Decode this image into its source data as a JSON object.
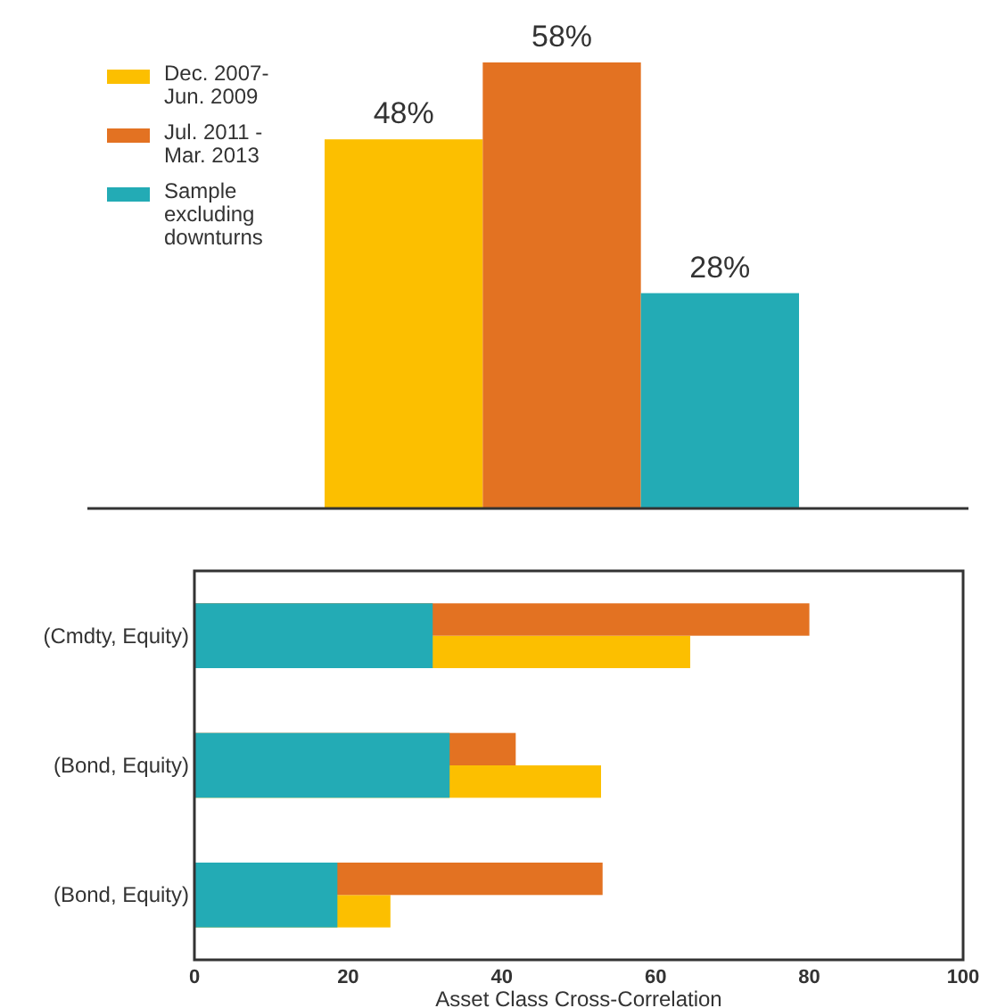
{
  "chart_data": [
    {
      "type": "bar",
      "categories": [
        null
      ],
      "series": [
        {
          "name": "Dec. 2007-\nJun. 2009",
          "color": "#fcbf00",
          "values": [
            48
          ],
          "value_labels": [
            "48%"
          ]
        },
        {
          "name": "Jul. 2011 -\nMar. 2013",
          "color": "#e37222",
          "values": [
            58
          ],
          "value_labels": [
            "58%"
          ]
        },
        {
          "name": "Sample\nexcluding\ndownturns",
          "color": "#23abb5",
          "values": [
            28
          ],
          "value_labels": [
            "28%"
          ]
        }
      ],
      "legend": "top left"
    },
    {
      "type": "bar",
      "orientation": "horizontal",
      "categories": [
        "(Cmdty, Equity)",
        "(Bond, Equity)",
        "(Bond, Equity)"
      ],
      "series": [
        {
          "color": "#fcbf00",
          "values": [
            64.5,
            52.9,
            25.5
          ]
        },
        {
          "color": "#e37222",
          "values": [
            80,
            41.8,
            53.1
          ]
        },
        {
          "color": "#23abb5",
          "values": [
            31,
            33.2,
            18.6
          ]
        }
      ],
      "xlim": [
        0,
        100
      ],
      "xticks": [
        0,
        20,
        40,
        60,
        80,
        100
      ],
      "xlabel": "Asset Class Cross-Correlation",
      "grid": false
    }
  ]
}
